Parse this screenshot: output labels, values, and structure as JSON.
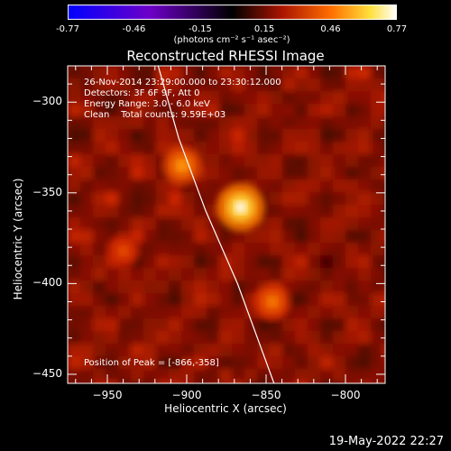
{
  "colorbar": {
    "ticks": [
      "-0.77",
      "-0.46",
      "-0.15",
      "0.15",
      "0.46",
      "0.77"
    ],
    "units_label": "(photons cm⁻² s⁻¹ asec⁻²)"
  },
  "info": {
    "time_range": "26-Nov-2014 23:29:00.000 to 23:30:12.000",
    "detectors": "Detectors: 3F 6F 9F, Att 0",
    "energy_range": "Energy Range: 3.0 - 6.0 keV",
    "algorithm": "Clean    Total counts: 9.59E+03"
  },
  "peak_label": "Position of Peak = [-866,-358]",
  "timestamp": "19-May-2022 22:27",
  "chart_data": {
    "type": "heatmap",
    "title": "Reconstructed RHESSI Image",
    "xlabel": "Heliocentric X (arcsec)",
    "ylabel": "Heliocentric Y (arcsec)",
    "xlim": [
      -975,
      -775
    ],
    "ylim": [
      -455,
      -280
    ],
    "xticks": [
      -950,
      -900,
      -850,
      -800
    ],
    "yticks": [
      -300,
      -350,
      -400,
      -450
    ],
    "colorbar_range": [
      -0.77,
      0.77
    ],
    "peak": {
      "x": -866,
      "y": -358
    },
    "sources": [
      {
        "x": -866,
        "y": -358,
        "intensity": 0.77
      },
      {
        "x": -903,
        "y": -335,
        "intensity": 0.5
      },
      {
        "x": -846,
        "y": -410,
        "intensity": 0.42
      },
      {
        "x": -940,
        "y": -382,
        "intensity": 0.3
      }
    ],
    "limb_curve": [
      [
        -918,
        -280
      ],
      [
        -905,
        -320
      ],
      [
        -888,
        -360
      ],
      [
        -868,
        -400
      ],
      [
        -845,
        -455
      ]
    ],
    "colors": {
      "limb": "#ffffff",
      "background": "#000000"
    }
  }
}
